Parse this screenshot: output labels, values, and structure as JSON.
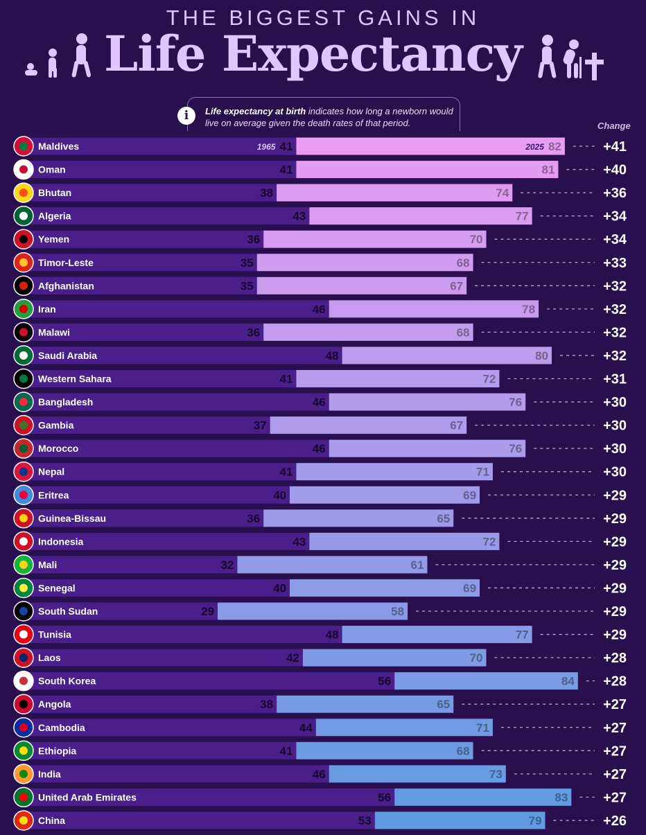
{
  "header": {
    "top_line": "THE BIGGEST GAINS IN",
    "main_title": "Life Expectancy"
  },
  "info": {
    "bold_text": "Life expectancy at birth",
    "text": " indicates how long a newborn would live on average given the death rates of that period."
  },
  "change_label": "Change",
  "year_labels": {
    "start": "1965",
    "end": "2025"
  },
  "colors": {
    "background": "#2a0f4e",
    "bar_1965": "#4a1f8a",
    "bar_2025_top": "#e89cf2",
    "bar_2025_bottom": "#5e9be0"
  },
  "chart_data": {
    "type": "bar",
    "title": "Life Expectancy",
    "subtitle": "THE BIGGEST GAINS IN",
    "series": [
      {
        "name": "1965",
        "values": [
          41,
          41,
          38,
          43,
          36,
          35,
          35,
          46,
          36,
          48,
          41,
          46,
          37,
          46,
          41,
          40,
          36,
          43,
          32,
          40,
          29,
          48,
          42,
          56,
          38,
          44,
          41,
          46,
          56,
          53
        ]
      },
      {
        "name": "2025",
        "values": [
          82,
          81,
          74,
          77,
          70,
          68,
          67,
          78,
          68,
          80,
          72,
          76,
          67,
          76,
          71,
          69,
          65,
          72,
          61,
          69,
          58,
          77,
          70,
          84,
          65,
          71,
          68,
          73,
          83,
          79
        ]
      }
    ],
    "categories": [
      "Maldives",
      "Oman",
      "Bhutan",
      "Algeria",
      "Yemen",
      "Timor-Leste",
      "Afghanistan",
      "Iran",
      "Malawi",
      "Saudi Arabia",
      "Western Sahara",
      "Bangladesh",
      "Gambia",
      "Morocco",
      "Nepal",
      "Eritrea",
      "Guinea-Bissau",
      "Indonesia",
      "Mali",
      "Senegal",
      "South Sudan",
      "Tunisia",
      "Laos",
      "South Korea",
      "Angola",
      "Cambodia",
      "Ethiopia",
      "India",
      "United Arab Emirates",
      "China"
    ],
    "change_labels": [
      "+41",
      "+40",
      "+36",
      "+34",
      "+34",
      "+33",
      "+32",
      "+32",
      "+32",
      "+32",
      "+31",
      "+30",
      "+30",
      "+30",
      "+30",
      "+29",
      "+29",
      "+29",
      "+29",
      "+29",
      "+29",
      "+29",
      "+28",
      "+28",
      "+27",
      "+27",
      "+27",
      "+27",
      "+27",
      "+26"
    ],
    "flag_icons": [
      "maldives-flag-icon",
      "oman-flag-icon",
      "bhutan-flag-icon",
      "algeria-flag-icon",
      "yemen-flag-icon",
      "timor-leste-flag-icon",
      "afghanistan-flag-icon",
      "iran-flag-icon",
      "malawi-flag-icon",
      "saudi-arabia-flag-icon",
      "western-sahara-flag-icon",
      "bangladesh-flag-icon",
      "gambia-flag-icon",
      "morocco-flag-icon",
      "nepal-flag-icon",
      "eritrea-flag-icon",
      "guinea-bissau-flag-icon",
      "indonesia-flag-icon",
      "mali-flag-icon",
      "senegal-flag-icon",
      "south-sudan-flag-icon",
      "tunisia-flag-icon",
      "laos-flag-icon",
      "south-korea-flag-icon",
      "angola-flag-icon",
      "cambodia-flag-icon",
      "ethiopia-flag-icon",
      "india-flag-icon",
      "uae-flag-icon",
      "china-flag-icon"
    ],
    "xlim": [
      0,
      85
    ],
    "orientation": "horizontal",
    "grid": false,
    "legend": "none"
  }
}
